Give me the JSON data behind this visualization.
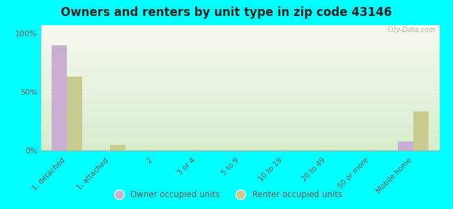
{
  "title": "Owners and renters by unit type in zip code 43146",
  "categories": [
    "1, detached",
    "1, attached",
    "2",
    "3 or 4",
    "5 to 9",
    "10 to 19",
    "20 to 49",
    "50 or more",
    "Mobile home"
  ],
  "owner_values": [
    90,
    0,
    0,
    0,
    0,
    0,
    0,
    0,
    8
  ],
  "renter_values": [
    63,
    5,
    0,
    0,
    0,
    0,
    0,
    0,
    33
  ],
  "owner_color": "#c9afd4",
  "renter_color": "#c8cc8f",
  "background_color": "#00ffff",
  "ylabel_ticks": [
    "0%",
    "50%",
    "100%"
  ],
  "ytick_values": [
    0,
    50,
    100
  ],
  "ylim": [
    0,
    107
  ],
  "bar_width": 0.35,
  "legend_owner": "Owner occupied units",
  "legend_renter": "Renter occupied units",
  "watermark": "City-Data.com"
}
